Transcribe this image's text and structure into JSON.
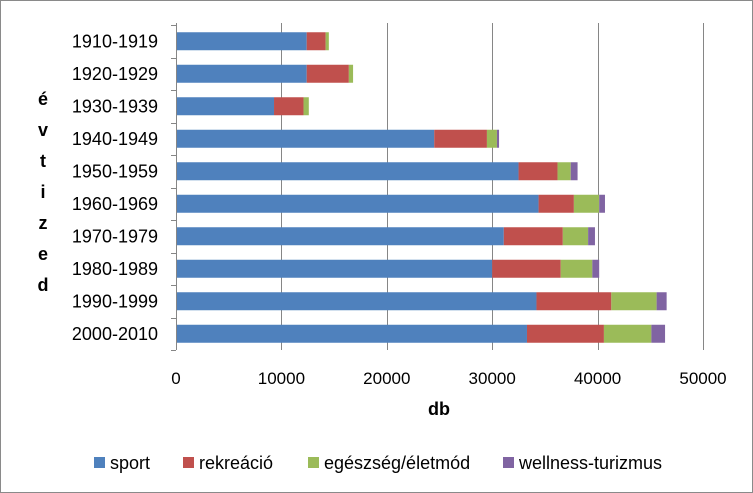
{
  "chart_data": {
    "type": "bar",
    "orientation": "horizontal",
    "stacked": true,
    "categories": [
      "1910-1919",
      "1920-1929",
      "1930-1939",
      "1940-1949",
      "1950-1959",
      "1960-1969",
      "1970-1979",
      "1980-1989",
      "1990-1999",
      "2000-2010"
    ],
    "series": [
      {
        "name": "sport",
        "color": "#4F81BD",
        "values": [
          12400,
          12400,
          9300,
          24500,
          32500,
          34400,
          31100,
          30000,
          34200,
          33300
        ]
      },
      {
        "name": "rekreáció",
        "color": "#C0504D",
        "values": [
          1800,
          4000,
          2800,
          5000,
          3700,
          3350,
          5600,
          6500,
          7100,
          7300
        ]
      },
      {
        "name": "egészség/életmód",
        "color": "#9BBB59",
        "values": [
          300,
          400,
          500,
          950,
          1250,
          2400,
          2400,
          3000,
          4300,
          4500
        ]
      },
      {
        "name": "wellness-turizmus",
        "color": "#8064A2",
        "values": [
          0,
          0,
          0,
          200,
          650,
          550,
          650,
          650,
          950,
          1300
        ]
      }
    ],
    "xlabel": "db",
    "ylabel": "évtized",
    "xlim": [
      0,
      50000
    ],
    "xticks": [
      0,
      10000,
      20000,
      30000,
      40000,
      50000
    ],
    "grid": "vertical",
    "legend": "bottom"
  }
}
